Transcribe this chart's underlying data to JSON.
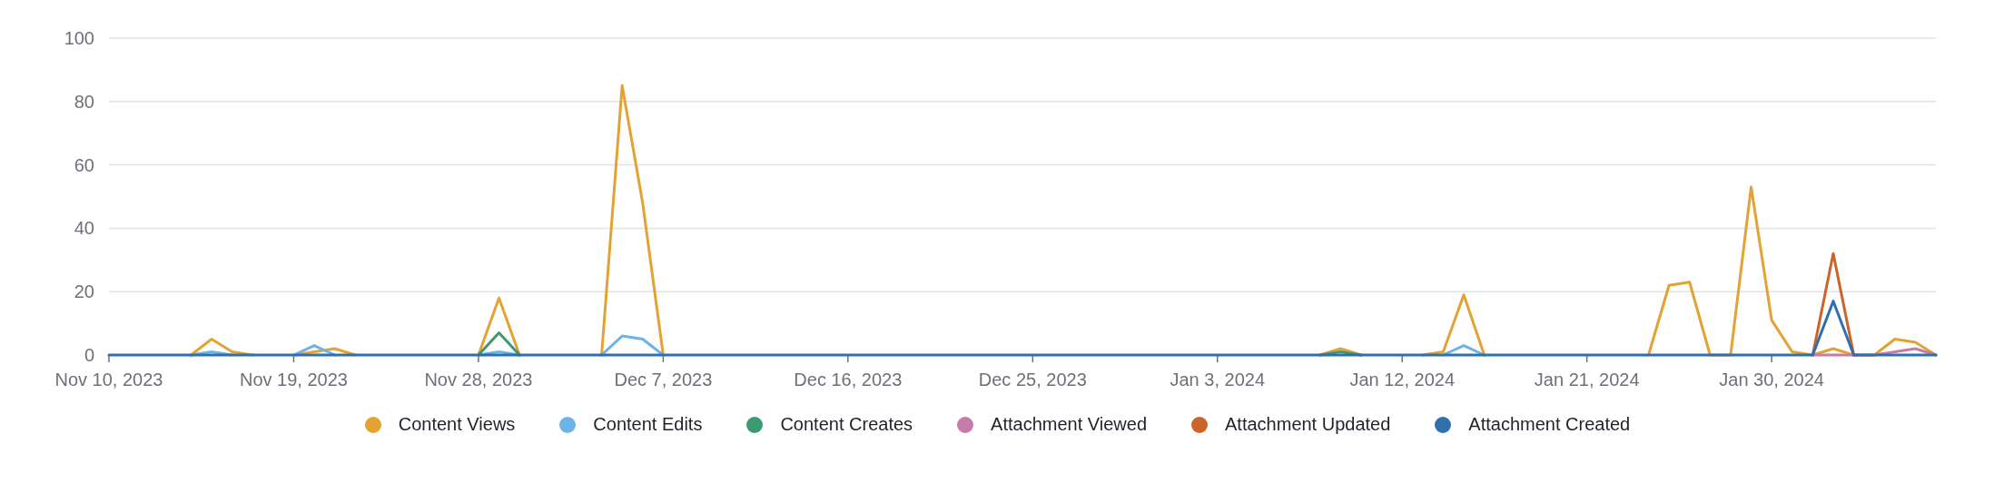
{
  "chart_data": {
    "type": "line",
    "x": [
      "2023-11-10",
      "2023-11-11",
      "2023-11-12",
      "2023-11-13",
      "2023-11-14",
      "2023-11-15",
      "2023-11-16",
      "2023-11-17",
      "2023-11-18",
      "2023-11-19",
      "2023-11-20",
      "2023-11-21",
      "2023-11-22",
      "2023-11-23",
      "2023-11-24",
      "2023-11-25",
      "2023-11-26",
      "2023-11-27",
      "2023-11-28",
      "2023-11-29",
      "2023-11-30",
      "2023-12-01",
      "2023-12-02",
      "2023-12-03",
      "2023-12-04",
      "2023-12-05",
      "2023-12-06",
      "2023-12-07",
      "2023-12-08",
      "2023-12-09",
      "2023-12-10",
      "2023-12-11",
      "2023-12-12",
      "2023-12-13",
      "2023-12-14",
      "2023-12-15",
      "2023-12-16",
      "2023-12-17",
      "2023-12-18",
      "2023-12-19",
      "2023-12-20",
      "2023-12-21",
      "2023-12-22",
      "2023-12-23",
      "2023-12-24",
      "2023-12-25",
      "2023-12-26",
      "2023-12-27",
      "2023-12-28",
      "2023-12-29",
      "2023-12-30",
      "2023-12-31",
      "2024-01-01",
      "2024-01-02",
      "2024-01-03",
      "2024-01-04",
      "2024-01-05",
      "2024-01-06",
      "2024-01-07",
      "2024-01-08",
      "2024-01-09",
      "2024-01-10",
      "2024-01-11",
      "2024-01-12",
      "2024-01-13",
      "2024-01-14",
      "2024-01-15",
      "2024-01-16",
      "2024-01-17",
      "2024-01-18",
      "2024-01-19",
      "2024-01-20",
      "2024-01-21",
      "2024-01-22",
      "2024-01-23",
      "2024-01-24",
      "2024-01-25",
      "2024-01-26",
      "2024-01-27",
      "2024-01-28",
      "2024-01-29",
      "2024-01-30",
      "2024-01-31",
      "2024-02-01",
      "2024-02-02",
      "2024-02-03",
      "2024-02-04",
      "2024-02-05",
      "2024-02-06",
      "2024-02-07"
    ],
    "series": [
      {
        "name": "Content Views",
        "color": "#e3a232",
        "values": [
          null,
          null,
          null,
          null,
          0,
          5,
          1,
          0,
          null,
          0,
          1,
          2,
          0,
          null,
          null,
          null,
          null,
          null,
          0,
          18,
          0,
          null,
          null,
          null,
          0,
          85,
          48,
          0,
          null,
          null,
          null,
          null,
          null,
          null,
          null,
          null,
          null,
          null,
          null,
          null,
          null,
          null,
          null,
          null,
          null,
          null,
          null,
          null,
          null,
          null,
          null,
          null,
          null,
          null,
          null,
          null,
          null,
          null,
          null,
          0,
          2,
          0,
          null,
          null,
          0,
          1,
          19,
          0,
          null,
          null,
          null,
          null,
          null,
          null,
          null,
          0,
          22,
          23,
          0,
          0,
          53,
          11,
          1,
          0,
          2,
          0,
          0,
          5,
          4,
          0
        ]
      },
      {
        "name": "Content Edits",
        "color": "#6cb4e8",
        "values": [
          null,
          null,
          null,
          null,
          0,
          1,
          0,
          null,
          null,
          0,
          3,
          0,
          null,
          null,
          null,
          null,
          null,
          null,
          0,
          1,
          0,
          null,
          null,
          null,
          0,
          6,
          5,
          0,
          null,
          null,
          null,
          null,
          null,
          null,
          null,
          null,
          null,
          null,
          null,
          null,
          null,
          null,
          null,
          null,
          null,
          null,
          null,
          null,
          null,
          null,
          null,
          null,
          null,
          null,
          null,
          null,
          null,
          null,
          null,
          null,
          null,
          null,
          null,
          null,
          null,
          0,
          3,
          0,
          null,
          null,
          null,
          null,
          null,
          null,
          null,
          null,
          null,
          null,
          null,
          null,
          null,
          null,
          null,
          null,
          null,
          null,
          null,
          null,
          null,
          null
        ]
      },
      {
        "name": "Content Creates",
        "color": "#3d9970",
        "values": [
          null,
          null,
          null,
          null,
          null,
          null,
          null,
          null,
          null,
          null,
          null,
          null,
          null,
          null,
          null,
          null,
          null,
          null,
          0,
          7,
          0,
          null,
          null,
          null,
          null,
          null,
          null,
          null,
          null,
          null,
          null,
          null,
          null,
          null,
          null,
          null,
          null,
          null,
          null,
          null,
          null,
          null,
          null,
          null,
          null,
          null,
          null,
          null,
          null,
          null,
          null,
          null,
          null,
          null,
          null,
          null,
          null,
          null,
          null,
          0,
          1,
          0,
          null,
          null,
          null,
          null,
          null,
          null,
          null,
          null,
          null,
          null,
          null,
          null,
          null,
          null,
          null,
          null,
          null,
          null,
          null,
          null,
          null,
          null,
          null,
          null,
          null,
          null,
          null,
          null
        ]
      },
      {
        "name": "Attachment Viewed",
        "color": "#c47cab",
        "values": [
          null,
          null,
          null,
          null,
          null,
          null,
          null,
          null,
          null,
          null,
          null,
          null,
          null,
          null,
          null,
          null,
          null,
          null,
          null,
          null,
          null,
          null,
          null,
          null,
          null,
          null,
          null,
          null,
          null,
          null,
          null,
          null,
          null,
          null,
          null,
          null,
          null,
          null,
          null,
          null,
          null,
          null,
          null,
          null,
          null,
          null,
          null,
          null,
          null,
          null,
          null,
          null,
          null,
          null,
          null,
          null,
          null,
          null,
          null,
          null,
          null,
          null,
          null,
          null,
          null,
          null,
          null,
          null,
          null,
          null,
          null,
          null,
          null,
          null,
          null,
          null,
          null,
          null,
          null,
          null,
          null,
          null,
          null,
          0,
          0,
          0,
          0,
          1,
          2,
          0
        ]
      },
      {
        "name": "Attachment Updated",
        "color": "#cb6428",
        "values": [
          null,
          null,
          null,
          null,
          null,
          null,
          null,
          null,
          null,
          null,
          null,
          null,
          null,
          null,
          null,
          null,
          null,
          null,
          null,
          null,
          null,
          null,
          null,
          null,
          null,
          null,
          null,
          null,
          null,
          null,
          null,
          null,
          null,
          null,
          null,
          null,
          null,
          null,
          null,
          null,
          null,
          null,
          null,
          null,
          null,
          null,
          null,
          null,
          null,
          null,
          null,
          null,
          null,
          null,
          null,
          null,
          null,
          null,
          null,
          null,
          null,
          null,
          null,
          null,
          null,
          null,
          null,
          null,
          null,
          null,
          null,
          null,
          null,
          null,
          null,
          null,
          null,
          null,
          null,
          null,
          null,
          null,
          null,
          0,
          32,
          0,
          null,
          null,
          null,
          null
        ]
      },
      {
        "name": "Attachment Created",
        "color": "#2f6fad",
        "values": [
          0,
          0,
          0,
          0,
          0,
          0,
          0,
          0,
          0,
          0,
          0,
          0,
          0,
          0,
          0,
          0,
          0,
          0,
          0,
          0,
          0,
          0,
          0,
          0,
          0,
          0,
          0,
          0,
          0,
          0,
          0,
          0,
          0,
          0,
          0,
          0,
          0,
          0,
          0,
          0,
          0,
          0,
          0,
          0,
          0,
          0,
          0,
          0,
          0,
          0,
          0,
          0,
          0,
          0,
          0,
          0,
          0,
          0,
          0,
          0,
          0,
          0,
          0,
          0,
          0,
          0,
          0,
          0,
          0,
          0,
          0,
          0,
          0,
          0,
          0,
          0,
          0,
          0,
          0,
          0,
          0,
          0,
          0,
          0,
          17,
          0,
          0,
          0,
          0,
          0
        ]
      }
    ],
    "xlim": [
      "2023-11-10",
      "2024-02-07"
    ],
    "xticks": [
      {
        "value": "2023-11-10",
        "label": "Nov 10, 2023"
      },
      {
        "value": "2023-11-19",
        "label": "Nov 19, 2023"
      },
      {
        "value": "2023-11-28",
        "label": "Nov 28, 2023"
      },
      {
        "value": "2023-12-07",
        "label": "Dec 7, 2023"
      },
      {
        "value": "2023-12-16",
        "label": "Dec 16, 2023"
      },
      {
        "value": "2023-12-25",
        "label": "Dec 25, 2023"
      },
      {
        "value": "2024-01-03",
        "label": "Jan 3, 2024"
      },
      {
        "value": "2024-01-12",
        "label": "Jan 12, 2024"
      },
      {
        "value": "2024-01-21",
        "label": "Jan 21, 2024"
      },
      {
        "value": "2024-01-30",
        "label": "Jan 30, 2024"
      }
    ],
    "ylim": [
      0,
      100
    ],
    "yticks": [
      0,
      20,
      40,
      60,
      80,
      100
    ],
    "grid": "y",
    "legend": "bottom",
    "marker": "none",
    "line_style": "solid"
  }
}
